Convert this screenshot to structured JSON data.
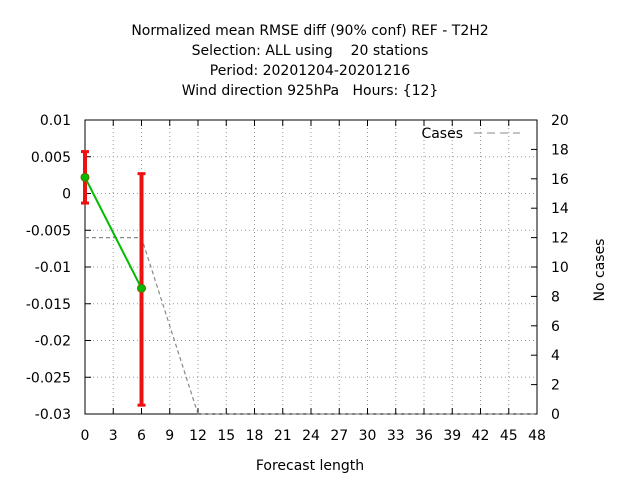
{
  "chart_data": {
    "type": "line",
    "title_lines": [
      "Normalized mean RMSE diff (90% conf) REF - T2H2",
      "Selection: ALL using    20 stations",
      "Period: 20201204-20201216",
      "Wind direction 925hPa   Hours: {12}"
    ],
    "xlabel": "Forecast length",
    "ylabel_right": "No cases",
    "xlim": [
      0,
      48
    ],
    "ylim_left": [
      -0.03,
      0.01
    ],
    "ylim_right": [
      0,
      20
    ],
    "x_ticks": [
      "0",
      "3",
      "6",
      "9",
      "12",
      "15",
      "18",
      "21",
      "24",
      "27",
      "30",
      "33",
      "36",
      "39",
      "42",
      "45",
      "48"
    ],
    "y_left_ticks": [
      "0.01",
      "0.005",
      "0",
      "-0.005",
      "-0.01",
      "-0.015",
      "-0.02",
      "-0.025",
      "-0.03"
    ],
    "y_right_ticks": [
      "20",
      "18",
      "16",
      "14",
      "12",
      "10",
      "8",
      "6",
      "4",
      "2",
      "0"
    ],
    "grid": true,
    "legend": {
      "position": "top-right",
      "label": "Cases"
    },
    "series": [
      {
        "axis": "left",
        "color": "#00bb00",
        "x": [
          0,
          6
        ],
        "y": [
          0.0022,
          -0.0129
        ],
        "err_low": [
          -0.0013,
          -0.0288
        ],
        "err_high": [
          0.0057,
          0.0027
        ],
        "error_color": "#ee1111"
      },
      {
        "name": "Cases",
        "axis": "right",
        "color": "#888888",
        "dash": true,
        "x": [
          0,
          3,
          6,
          12,
          15,
          18,
          21,
          24,
          27,
          30,
          33,
          36,
          39,
          42,
          45,
          48
        ],
        "y": [
          12,
          12,
          12,
          0,
          0,
          0,
          0,
          0,
          0,
          0,
          0,
          0,
          0,
          0,
          0,
          0
        ]
      }
    ]
  }
}
